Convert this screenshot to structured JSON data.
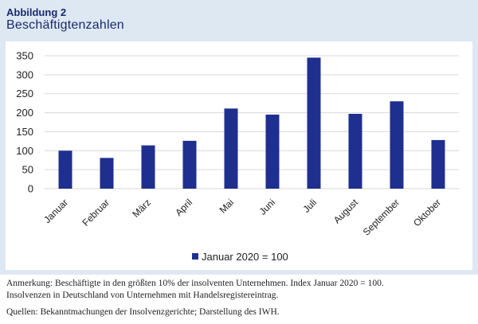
{
  "figure": {
    "label": "Abbildung 2",
    "title": "Beschäftigtenzahlen"
  },
  "colors": {
    "bar": "#1f2f8f",
    "grid": "#d9d9d9",
    "frame": "#dde8f3",
    "title": "#1a2a6c"
  },
  "chart_data": {
    "type": "bar",
    "categories": [
      "Januar",
      "Februar",
      "März",
      "April",
      "Mai",
      "Juni",
      "Juli",
      "August",
      "September",
      "Oktober"
    ],
    "series": [
      {
        "name": "Januar 2020 = 100",
        "values": [
          100,
          81,
          114,
          126,
          211,
          195,
          345,
          197,
          230,
          128
        ]
      }
    ],
    "yticks": [
      "0",
      "50",
      "100",
      "150",
      "200",
      "250",
      "300",
      "350"
    ],
    "ylim": [
      0,
      350
    ],
    "grid": true,
    "legend_position": "bottom"
  },
  "notes": {
    "anmerkung_line1": "Anmerkung: Beschäftigte in den größten 10% der insolventen Unternehmen. Index Januar 2020 = 100.",
    "anmerkung_line2": "Insolvenzen in Deutschland von Unternehmen mit Handelsregistereintrag.",
    "quellen": "Quellen: Bekanntmachungen der Insolvenzgerichte; Darstellung des IWH."
  }
}
